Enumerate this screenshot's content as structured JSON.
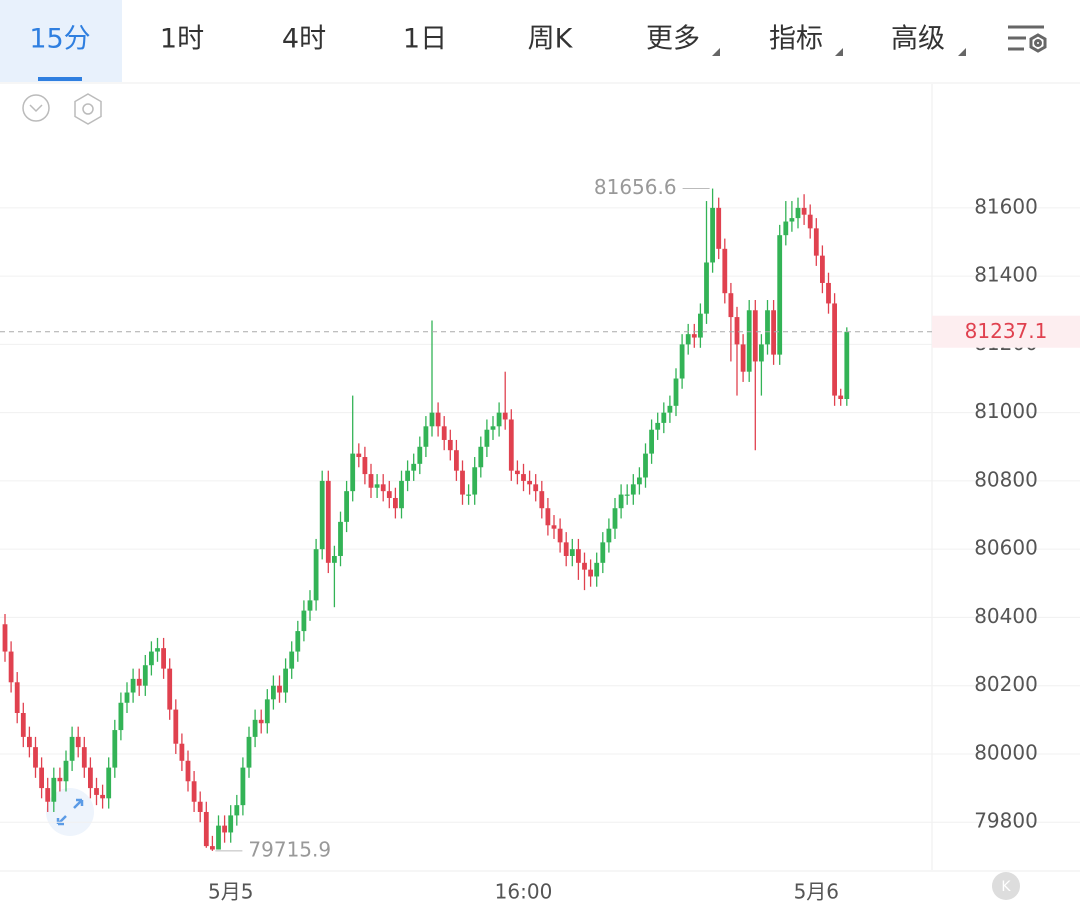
{
  "tabs": [
    "15分",
    "1时",
    "4时",
    "1日",
    "周K",
    "更多",
    "指标",
    "高级"
  ],
  "badge": "K",
  "chart_data": {
    "type": "candlestick",
    "categories": [
      null,
      null,
      null,
      null,
      null,
      null,
      null,
      null,
      null,
      null,
      null,
      null,
      null,
      null,
      null,
      null,
      null,
      null,
      null,
      null,
      null,
      null,
      null,
      null,
      null,
      null,
      null,
      null,
      null,
      null,
      null,
      null,
      null,
      null,
      null,
      null,
      null,
      "5月5",
      null,
      null,
      null,
      null,
      null,
      null,
      null,
      null,
      null,
      null,
      null,
      null,
      null,
      null,
      null,
      null,
      null,
      null,
      null,
      null,
      null,
      null,
      null,
      null,
      null,
      null,
      null,
      null,
      null,
      null,
      null,
      null,
      null,
      null,
      null,
      null,
      null,
      null,
      null,
      null,
      null,
      null,
      null,
      null,
      null,
      null,
      null,
      "16:00",
      null,
      null,
      null,
      null,
      null,
      null,
      null,
      null,
      null,
      null,
      null,
      null,
      null,
      null,
      null,
      null,
      null,
      null,
      null,
      null,
      null,
      null,
      null,
      null,
      null,
      null,
      null,
      null,
      null,
      null,
      null,
      null,
      null,
      null,
      null,
      null,
      null,
      null,
      null,
      null,
      null,
      null,
      null,
      null,
      null,
      null,
      null,
      "5月6",
      null,
      null,
      null,
      null,
      null
    ],
    "series": [
      {
        "up_color": "#33b356",
        "down_color": "#e0414f",
        "open": [
          80380,
          80300,
          80210,
          80120,
          80050,
          80020,
          79960,
          79900,
          79860,
          79930,
          79920,
          79980,
          80050,
          80020,
          79960,
          79900,
          79880,
          79870,
          79960,
          80070,
          80150,
          80180,
          80220,
          80200,
          80260,
          80300,
          80310,
          80250,
          80130,
          80030,
          79980,
          79920,
          79860,
          79830,
          79730,
          79720,
          79790,
          79770,
          79820,
          79850,
          79960,
          80050,
          80100,
          80090,
          80160,
          80200,
          80180,
          80250,
          80300,
          80360,
          80420,
          80450,
          80600,
          80800,
          80560,
          80580,
          80680,
          80770,
          80880,
          80870,
          80820,
          80780,
          80790,
          80770,
          80750,
          80720,
          80800,
          80830,
          80850,
          80900,
          80960,
          81000,
          80960,
          80920,
          80890,
          80830,
          80760,
          80760,
          80840,
          80900,
          80950,
          80960,
          81000,
          80980,
          80830,
          80820,
          80800,
          80790,
          80770,
          80720,
          80670,
          80660,
          80620,
          80580,
          80600,
          80560,
          80540,
          80520,
          80560,
          80620,
          80660,
          80720,
          80760,
          80760,
          80790,
          80810,
          80880,
          80950,
          80970,
          81000,
          81020,
          81100,
          81200,
          81230,
          81220,
          81290,
          81440,
          81600,
          81480,
          81350,
          81280,
          81200,
          81120,
          81300,
          81150,
          81200,
          81300,
          81170,
          81520,
          81560,
          81570,
          81600,
          81580,
          81540,
          81460,
          81380,
          81320,
          81050,
          81040
        ],
        "high": [
          80410,
          80330,
          80240,
          80150,
          80080,
          80050,
          79990,
          79930,
          79960,
          79960,
          80010,
          80080,
          80080,
          80050,
          79990,
          79930,
          79910,
          79990,
          80100,
          80180,
          80210,
          80250,
          80250,
          80290,
          80330,
          80340,
          80340,
          80280,
          80160,
          80060,
          80010,
          79950,
          79890,
          79860,
          79760,
          79820,
          79820,
          79850,
          79880,
          79990,
          80080,
          80130,
          80130,
          80190,
          80230,
          80230,
          80280,
          80330,
          80390,
          80450,
          80480,
          80630,
          80830,
          80830,
          80610,
          80710,
          80800,
          81050,
          80910,
          80900,
          80850,
          80820,
          80820,
          80800,
          80780,
          80830,
          80860,
          80880,
          80930,
          80990,
          81270,
          81030,
          80990,
          80950,
          80920,
          80860,
          80790,
          80870,
          80930,
          80980,
          80990,
          81030,
          81120,
          81010,
          80860,
          80850,
          80830,
          80820,
          80800,
          80750,
          80700,
          80690,
          80650,
          80630,
          80630,
          80590,
          80570,
          80590,
          80650,
          80690,
          80750,
          80790,
          80790,
          80820,
          80840,
          80910,
          80980,
          81000,
          81030,
          81050,
          81130,
          81230,
          81260,
          81260,
          81320,
          81620,
          81656.6,
          81630,
          81510,
          81380,
          81310,
          81230,
          81330,
          81330,
          81230,
          81330,
          81330,
          81550,
          81620,
          81620,
          81630,
          81640,
          81610,
          81570,
          81490,
          81410,
          81350,
          81070,
          81250
        ],
        "low": [
          80270,
          80180,
          80090,
          80020,
          79990,
          79930,
          79870,
          79830,
          79830,
          79890,
          79890,
          79950,
          79990,
          79930,
          79870,
          79850,
          79840,
          79840,
          79930,
          80040,
          80120,
          80150,
          80170,
          80170,
          80230,
          80270,
          80220,
          80100,
          80000,
          79950,
          79890,
          79830,
          79800,
          79725,
          79715.9,
          79720,
          79740,
          79740,
          79790,
          79820,
          79930,
          80020,
          80060,
          80060,
          80130,
          80150,
          80150,
          80220,
          80270,
          80330,
          80390,
          80420,
          80570,
          80530,
          80430,
          80550,
          80650,
          80740,
          80840,
          80790,
          80750,
          80750,
          80740,
          80720,
          80690,
          80690,
          80770,
          80800,
          80820,
          80870,
          80930,
          80930,
          80890,
          80860,
          80800,
          80730,
          80730,
          80730,
          80810,
          80870,
          80920,
          80930,
          80950,
          80800,
          80790,
          80770,
          80760,
          80740,
          80690,
          80640,
          80630,
          80590,
          80550,
          80550,
          80510,
          80480,
          80490,
          80490,
          80530,
          80590,
          80630,
          80690,
          80730,
          80730,
          80760,
          80780,
          80850,
          80920,
          80940,
          80970,
          80990,
          81070,
          81170,
          81190,
          81190,
          81260,
          81410,
          81450,
          81320,
          81150,
          81050,
          81090,
          81090,
          80890,
          81050,
          81170,
          81140,
          81140,
          81490,
          81530,
          81540,
          81550,
          81510,
          81430,
          81350,
          81290,
          81020,
          81020,
          81020
        ],
        "close": [
          80300,
          80210,
          80120,
          80050,
          80020,
          79960,
          79900,
          79860,
          79930,
          79920,
          79980,
          80050,
          80020,
          79960,
          79900,
          79880,
          79870,
          79960,
          80070,
          80150,
          80180,
          80220,
          80200,
          80260,
          80300,
          80310,
          80250,
          80130,
          80030,
          79980,
          79920,
          79860,
          79830,
          79730,
          79720,
          79790,
          79770,
          79820,
          79850,
          79960,
          80050,
          80100,
          80090,
          80160,
          80200,
          80180,
          80250,
          80300,
          80360,
          80420,
          80450,
          80600,
          80800,
          80560,
          80580,
          80680,
          80770,
          80880,
          80870,
          80820,
          80780,
          80790,
          80770,
          80750,
          80720,
          80800,
          80830,
          80850,
          80900,
          80960,
          81000,
          80960,
          80920,
          80890,
          80830,
          80760,
          80760,
          80840,
          80900,
          80950,
          80960,
          81000,
          80980,
          80830,
          80820,
          80800,
          80790,
          80770,
          80720,
          80670,
          80660,
          80620,
          80580,
          80600,
          80560,
          80540,
          80520,
          80560,
          80620,
          80660,
          80720,
          80760,
          80760,
          80790,
          80810,
          80880,
          80950,
          80970,
          81000,
          81020,
          81100,
          81200,
          81230,
          81220,
          81290,
          81440,
          81600,
          81480,
          81350,
          81280,
          81200,
          81120,
          81300,
          81150,
          81200,
          81300,
          81170,
          81520,
          81560,
          81570,
          81600,
          81580,
          81540,
          81460,
          81380,
          81320,
          81050,
          81040,
          81237.1
        ]
      }
    ],
    "ylim": [
      79660,
      81960
    ],
    "yticks": [
      79800,
      80000,
      80200,
      80400,
      80600,
      80800,
      81000,
      81200,
      81400,
      81600
    ],
    "grid": true,
    "max_index": 116,
    "min_index": 34
  }
}
